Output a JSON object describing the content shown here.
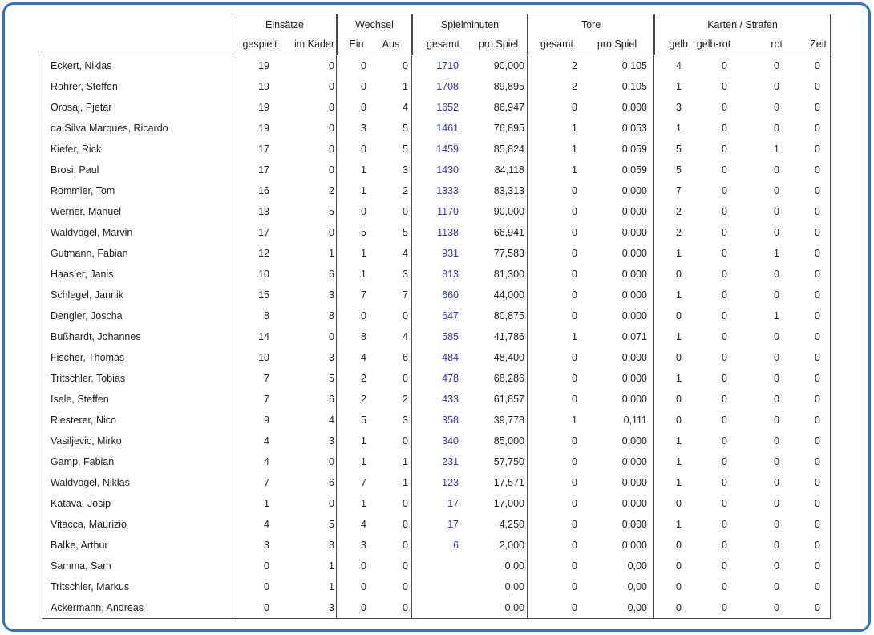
{
  "colors": {
    "frame_blue": "#2E74C6",
    "grid": "#4a4a4a",
    "text": "#1f1f1f",
    "minutes_value_blue": "#3333CC"
  },
  "table": {
    "header_groups": [
      {
        "label": "Einsätze",
        "sub": [
          "gespielt",
          "im Kader"
        ]
      },
      {
        "label": "Wechsel",
        "sub": [
          "Ein",
          "Aus"
        ]
      },
      {
        "label": "Spielminuten",
        "sub": [
          "gesamt",
          "pro Spiel"
        ]
      },
      {
        "label": "Tore",
        "sub": [
          "gesamt",
          "pro Spiel"
        ]
      },
      {
        "label": "Karten / Strafen",
        "sub": [
          "gelb",
          "gelb-rot",
          "rot",
          "Zeit"
        ]
      }
    ],
    "rows": [
      {
        "name": "Eckert, Niklas",
        "gespielt": "19",
        "im_kader": "0",
        "ein": "0",
        "aus": "0",
        "min_gesamt": "1710",
        "min_pro_spiel": "90,000",
        "tore_gesamt": "2",
        "tore_pro_spiel": "0,105",
        "gelb": "4",
        "gelb_rot": "0",
        "rot": "0",
        "zeit": "0"
      },
      {
        "name": "Rohrer, Steffen",
        "gespielt": "19",
        "im_kader": "0",
        "ein": "0",
        "aus": "1",
        "min_gesamt": "1708",
        "min_pro_spiel": "89,895",
        "tore_gesamt": "2",
        "tore_pro_spiel": "0,105",
        "gelb": "1",
        "gelb_rot": "0",
        "rot": "0",
        "zeit": "0"
      },
      {
        "name": "Orosaj, Pjetar",
        "gespielt": "19",
        "im_kader": "0",
        "ein": "0",
        "aus": "4",
        "min_gesamt": "1652",
        "min_pro_spiel": "86,947",
        "tore_gesamt": "0",
        "tore_pro_spiel": "0,000",
        "gelb": "3",
        "gelb_rot": "0",
        "rot": "0",
        "zeit": "0"
      },
      {
        "name": "da Silva Marques, Ricardo",
        "gespielt": "19",
        "im_kader": "0",
        "ein": "3",
        "aus": "5",
        "min_gesamt": "1461",
        "min_pro_spiel": "76,895",
        "tore_gesamt": "1",
        "tore_pro_spiel": "0,053",
        "gelb": "1",
        "gelb_rot": "0",
        "rot": "0",
        "zeit": "0"
      },
      {
        "name": "Kiefer, Rick",
        "gespielt": "17",
        "im_kader": "0",
        "ein": "0",
        "aus": "5",
        "min_gesamt": "1459",
        "min_pro_spiel": "85,824",
        "tore_gesamt": "1",
        "tore_pro_spiel": "0,059",
        "gelb": "5",
        "gelb_rot": "0",
        "rot": "1",
        "zeit": "0"
      },
      {
        "name": "Brosi, Paul",
        "gespielt": "17",
        "im_kader": "0",
        "ein": "1",
        "aus": "3",
        "min_gesamt": "1430",
        "min_pro_spiel": "84,118",
        "tore_gesamt": "1",
        "tore_pro_spiel": "0,059",
        "gelb": "5",
        "gelb_rot": "0",
        "rot": "0",
        "zeit": "0"
      },
      {
        "name": "Rommler, Tom",
        "gespielt": "16",
        "im_kader": "2",
        "ein": "1",
        "aus": "2",
        "min_gesamt": "1333",
        "min_pro_spiel": "83,313",
        "tore_gesamt": "0",
        "tore_pro_spiel": "0,000",
        "gelb": "7",
        "gelb_rot": "0",
        "rot": "0",
        "zeit": "0"
      },
      {
        "name": "Werner, Manuel",
        "gespielt": "13",
        "im_kader": "5",
        "ein": "0",
        "aus": "0",
        "min_gesamt": "1170",
        "min_pro_spiel": "90,000",
        "tore_gesamt": "0",
        "tore_pro_spiel": "0,000",
        "gelb": "2",
        "gelb_rot": "0",
        "rot": "0",
        "zeit": "0"
      },
      {
        "name": "Waldvogel, Marvin",
        "gespielt": "17",
        "im_kader": "0",
        "ein": "5",
        "aus": "5",
        "min_gesamt": "1138",
        "min_pro_spiel": "66,941",
        "tore_gesamt": "0",
        "tore_pro_spiel": "0,000",
        "gelb": "2",
        "gelb_rot": "0",
        "rot": "0",
        "zeit": "0"
      },
      {
        "name": "Gutmann, Fabian",
        "gespielt": "12",
        "im_kader": "1",
        "ein": "1",
        "aus": "4",
        "min_gesamt": "931",
        "min_pro_spiel": "77,583",
        "tore_gesamt": "0",
        "tore_pro_spiel": "0,000",
        "gelb": "1",
        "gelb_rot": "0",
        "rot": "1",
        "zeit": "0"
      },
      {
        "name": "Haasler, Janis",
        "gespielt": "10",
        "im_kader": "6",
        "ein": "1",
        "aus": "3",
        "min_gesamt": "813",
        "min_pro_spiel": "81,300",
        "tore_gesamt": "0",
        "tore_pro_spiel": "0,000",
        "gelb": "0",
        "gelb_rot": "0",
        "rot": "0",
        "zeit": "0"
      },
      {
        "name": "Schlegel, Jannik",
        "gespielt": "15",
        "im_kader": "3",
        "ein": "7",
        "aus": "7",
        "min_gesamt": "660",
        "min_pro_spiel": "44,000",
        "tore_gesamt": "0",
        "tore_pro_spiel": "0,000",
        "gelb": "1",
        "gelb_rot": "0",
        "rot": "0",
        "zeit": "0"
      },
      {
        "name": "Dengler, Joscha",
        "gespielt": "8",
        "im_kader": "8",
        "ein": "0",
        "aus": "0",
        "min_gesamt": "647",
        "min_pro_spiel": "80,875",
        "tore_gesamt": "0",
        "tore_pro_spiel": "0,000",
        "gelb": "0",
        "gelb_rot": "0",
        "rot": "1",
        "zeit": "0"
      },
      {
        "name": "Bußhardt, Johannes",
        "gespielt": "14",
        "im_kader": "0",
        "ein": "8",
        "aus": "4",
        "min_gesamt": "585",
        "min_pro_spiel": "41,786",
        "tore_gesamt": "1",
        "tore_pro_spiel": "0,071",
        "gelb": "1",
        "gelb_rot": "0",
        "rot": "0",
        "zeit": "0"
      },
      {
        "name": "Fischer, Thomas",
        "gespielt": "10",
        "im_kader": "3",
        "ein": "4",
        "aus": "6",
        "min_gesamt": "484",
        "min_pro_spiel": "48,400",
        "tore_gesamt": "0",
        "tore_pro_spiel": "0,000",
        "gelb": "0",
        "gelb_rot": "0",
        "rot": "0",
        "zeit": "0"
      },
      {
        "name": "Tritschler, Tobias",
        "gespielt": "7",
        "im_kader": "5",
        "ein": "2",
        "aus": "0",
        "min_gesamt": "478",
        "min_pro_spiel": "68,286",
        "tore_gesamt": "0",
        "tore_pro_spiel": "0,000",
        "gelb": "1",
        "gelb_rot": "0",
        "rot": "0",
        "zeit": "0"
      },
      {
        "name": "Isele, Steffen",
        "gespielt": "7",
        "im_kader": "6",
        "ein": "2",
        "aus": "2",
        "min_gesamt": "433",
        "min_pro_spiel": "61,857",
        "tore_gesamt": "0",
        "tore_pro_spiel": "0,000",
        "gelb": "0",
        "gelb_rot": "0",
        "rot": "0",
        "zeit": "0"
      },
      {
        "name": "Riesterer, Nico",
        "gespielt": "9",
        "im_kader": "4",
        "ein": "5",
        "aus": "3",
        "min_gesamt": "358",
        "min_pro_spiel": "39,778",
        "tore_gesamt": "1",
        "tore_pro_spiel": "0,111",
        "gelb": "0",
        "gelb_rot": "0",
        "rot": "0",
        "zeit": "0"
      },
      {
        "name": "Vasiljevic, Mirko",
        "gespielt": "4",
        "im_kader": "3",
        "ein": "1",
        "aus": "0",
        "min_gesamt": "340",
        "min_pro_spiel": "85,000",
        "tore_gesamt": "0",
        "tore_pro_spiel": "0,000",
        "gelb": "1",
        "gelb_rot": "0",
        "rot": "0",
        "zeit": "0"
      },
      {
        "name": "Gamp, Fabian",
        "gespielt": "4",
        "im_kader": "0",
        "ein": "1",
        "aus": "1",
        "min_gesamt": "231",
        "min_pro_spiel": "57,750",
        "tore_gesamt": "0",
        "tore_pro_spiel": "0,000",
        "gelb": "1",
        "gelb_rot": "0",
        "rot": "0",
        "zeit": "0"
      },
      {
        "name": "Waldvogel, Niklas",
        "gespielt": "7",
        "im_kader": "6",
        "ein": "7",
        "aus": "1",
        "min_gesamt": "123",
        "min_pro_spiel": "17,571",
        "tore_gesamt": "0",
        "tore_pro_spiel": "0,000",
        "gelb": "1",
        "gelb_rot": "0",
        "rot": "0",
        "zeit": "0"
      },
      {
        "name": "Katava, Josip",
        "gespielt": "1",
        "im_kader": "0",
        "ein": "1",
        "aus": "0",
        "min_gesamt": "17",
        "min_pro_spiel": "17,000",
        "tore_gesamt": "0",
        "tore_pro_spiel": "0,000",
        "gelb": "0",
        "gelb_rot": "0",
        "rot": "0",
        "zeit": "0"
      },
      {
        "name": "Vitacca, Maurizio",
        "gespielt": "4",
        "im_kader": "5",
        "ein": "4",
        "aus": "0",
        "min_gesamt": "17",
        "min_pro_spiel": "4,250",
        "tore_gesamt": "0",
        "tore_pro_spiel": "0,000",
        "gelb": "1",
        "gelb_rot": "0",
        "rot": "0",
        "zeit": "0"
      },
      {
        "name": "Balke, Arthur",
        "gespielt": "3",
        "im_kader": "8",
        "ein": "3",
        "aus": "0",
        "min_gesamt": "6",
        "min_pro_spiel": "2,000",
        "tore_gesamt": "0",
        "tore_pro_spiel": "0,000",
        "gelb": "0",
        "gelb_rot": "0",
        "rot": "0",
        "zeit": "0"
      },
      {
        "name": "Samma, Sam",
        "gespielt": "0",
        "im_kader": "1",
        "ein": "0",
        "aus": "0",
        "min_gesamt": "",
        "min_pro_spiel": "0,00",
        "tore_gesamt": "0",
        "tore_pro_spiel": "0,00",
        "gelb": "0",
        "gelb_rot": "0",
        "rot": "0",
        "zeit": "0"
      },
      {
        "name": "Tritschler, Markus",
        "gespielt": "0",
        "im_kader": "1",
        "ein": "0",
        "aus": "0",
        "min_gesamt": "",
        "min_pro_spiel": "0,00",
        "tore_gesamt": "0",
        "tore_pro_spiel": "0,00",
        "gelb": "0",
        "gelb_rot": "0",
        "rot": "0",
        "zeit": "0"
      },
      {
        "name": "Ackermann, Andreas",
        "gespielt": "0",
        "im_kader": "3",
        "ein": "0",
        "aus": "0",
        "min_gesamt": "",
        "min_pro_spiel": "0,00",
        "tore_gesamt": "0",
        "tore_pro_spiel": "0,00",
        "gelb": "0",
        "gelb_rot": "0",
        "rot": "0",
        "zeit": "0"
      }
    ]
  }
}
